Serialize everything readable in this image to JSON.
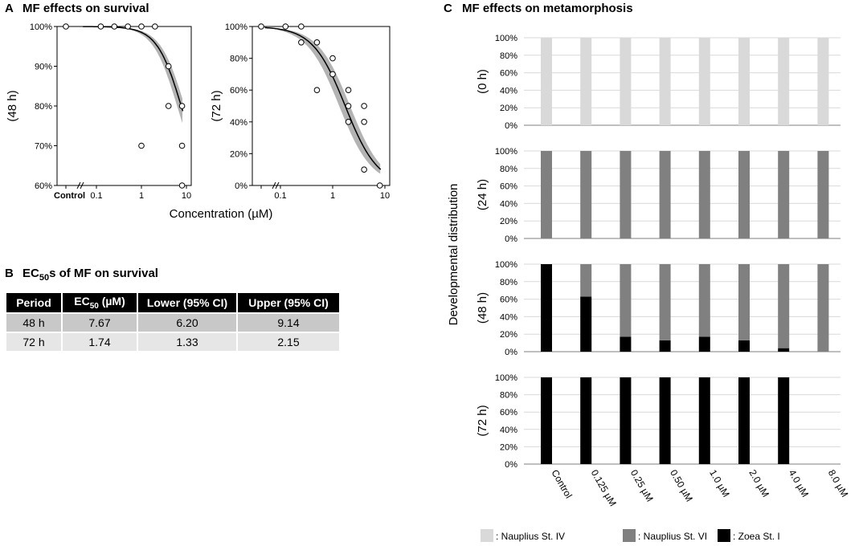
{
  "panel_a": {
    "letter": "A",
    "title": "MF effects on survival"
  },
  "panel_b": {
    "letter": "B",
    "title_pre": "EC",
    "title_sub": "50",
    "title_post": "s of MF on survival"
  },
  "panel_c": {
    "letter": "C",
    "title": "MF effects on metamorphosis"
  },
  "table": {
    "headers": [
      "Period",
      "EC50 (µM)",
      "Lower (95% CI)",
      "Upper (95% CI)"
    ],
    "header_ec_pre": "EC",
    "header_ec_sub": "50",
    "header_ec_post": " (µM)",
    "rows": [
      [
        "48 h",
        "7.67",
        "6.20",
        "9.14"
      ],
      [
        "72 h",
        "1.74",
        "1.33",
        "2.15"
      ]
    ]
  },
  "colors": {
    "nauplius_iv": "#d9d9d9",
    "nauplius_vi": "#808080",
    "zoea_i": "#000000",
    "band": "#b3b3b3",
    "axis": "#7f7f7f",
    "grid": "#d9d9d9"
  },
  "chart_data": [
    {
      "type": "scatter",
      "title": "MF effects on survival",
      "panel_label": "(48 h)",
      "xlabel": "Concentration (µM)",
      "xscale": "log",
      "control_label": "Control",
      "xticks": [
        "0.1",
        "1",
        "10"
      ],
      "yticks": [
        "60%",
        "70%",
        "80%",
        "90%",
        "100%"
      ],
      "ylim": [
        0.6,
        1.0
      ],
      "points": [
        {
          "x": "control",
          "y": 1.0
        },
        {
          "x": 0.125,
          "y": 1.0
        },
        {
          "x": 0.25,
          "y": 1.0
        },
        {
          "x": 0.5,
          "y": 1.0
        },
        {
          "x": 1.0,
          "y": 1.0
        },
        {
          "x": 1.0,
          "y": 0.7
        },
        {
          "x": 2.0,
          "y": 1.0
        },
        {
          "x": 4.0,
          "y": 0.9
        },
        {
          "x": 4.0,
          "y": 0.8
        },
        {
          "x": 8.0,
          "y": 0.8
        },
        {
          "x": 8.0,
          "y": 0.7
        },
        {
          "x": 8.0,
          "y": 0.6
        }
      ],
      "fit": {
        "model": "log-logistic",
        "ec50": 7.67,
        "hill": 1.6
      },
      "ci_band": {
        "ec50_low": 6.2,
        "ec50_high": 9.14
      }
    },
    {
      "type": "scatter",
      "title": "MF effects on survival",
      "panel_label": "(72 h)",
      "xlabel": "Concentration (µM)",
      "xscale": "log",
      "control_label": "Control",
      "xticks": [
        "0.1",
        "1",
        "10"
      ],
      "yticks": [
        "0%",
        "20%",
        "40%",
        "60%",
        "80%",
        "100%"
      ],
      "ylim": [
        0,
        1.0
      ],
      "points": [
        {
          "x": "control",
          "y": 1.0
        },
        {
          "x": 0.125,
          "y": 1.0
        },
        {
          "x": 0.25,
          "y": 1.0
        },
        {
          "x": 0.25,
          "y": 0.9
        },
        {
          "x": 0.5,
          "y": 0.9
        },
        {
          "x": 0.5,
          "y": 0.6
        },
        {
          "x": 1.0,
          "y": 0.8
        },
        {
          "x": 1.0,
          "y": 0.7
        },
        {
          "x": 2.0,
          "y": 0.6
        },
        {
          "x": 2.0,
          "y": 0.5
        },
        {
          "x": 2.0,
          "y": 0.4
        },
        {
          "x": 4.0,
          "y": 0.5
        },
        {
          "x": 4.0,
          "y": 0.4
        },
        {
          "x": 4.0,
          "y": 0.1
        },
        {
          "x": 8.0,
          "y": 0.0
        }
      ],
      "fit": {
        "model": "log-logistic",
        "ec50": 1.74,
        "hill": 1.4
      },
      "ci_band": {
        "ec50_low": 1.33,
        "ec50_high": 2.15
      }
    },
    {
      "type": "bar",
      "stacked": true,
      "title": "MF effects on metamorphosis",
      "ylabel": "Developmental distribution",
      "categories": [
        "Control",
        "0.125 µM",
        "0.25 µM",
        "0.50 µM",
        "1.0 µM",
        "2.0 µM",
        "4.0 µM",
        "8.0 µM"
      ],
      "yticks": [
        "0%",
        "20%",
        "40%",
        "60%",
        "80%",
        "100%"
      ],
      "legend": [
        {
          "key": "nauplius_iv",
          "label": ": Nauplius St. IV"
        },
        {
          "key": "nauplius_vi",
          "label": ": Nauplius St. VI"
        },
        {
          "key": "zoea_i",
          "label": ": Zoea St. I"
        }
      ],
      "panels": [
        {
          "label": "(0 h)",
          "series": {
            "nauplius_iv": [
              100,
              100,
              100,
              100,
              100,
              100,
              100,
              100
            ],
            "nauplius_vi": [
              0,
              0,
              0,
              0,
              0,
              0,
              0,
              0
            ],
            "zoea_i": [
              0,
              0,
              0,
              0,
              0,
              0,
              0,
              0
            ]
          }
        },
        {
          "label": "(24 h)",
          "series": {
            "nauplius_iv": [
              0,
              0,
              0,
              0,
              0,
              0,
              0,
              0
            ],
            "nauplius_vi": [
              100,
              100,
              100,
              100,
              100,
              100,
              100,
              100
            ],
            "zoea_i": [
              0,
              0,
              0,
              0,
              0,
              0,
              0,
              0
            ]
          }
        },
        {
          "label": "(48 h)",
          "series": {
            "nauplius_iv": [
              0,
              0,
              0,
              0,
              0,
              0,
              0,
              0
            ],
            "nauplius_vi": [
              0,
              37,
              83,
              87,
              83,
              87,
              96,
              100
            ],
            "zoea_i": [
              100,
              63,
              17,
              13,
              17,
              13,
              4,
              0
            ]
          }
        },
        {
          "label": "(72 h)",
          "series": {
            "nauplius_iv": [
              0,
              0,
              0,
              0,
              0,
              0,
              0,
              0
            ],
            "nauplius_vi": [
              0,
              0,
              0,
              0,
              0,
              0,
              0,
              0
            ],
            "zoea_i": [
              100,
              100,
              100,
              100,
              100,
              100,
              100,
              0
            ]
          }
        }
      ]
    }
  ]
}
